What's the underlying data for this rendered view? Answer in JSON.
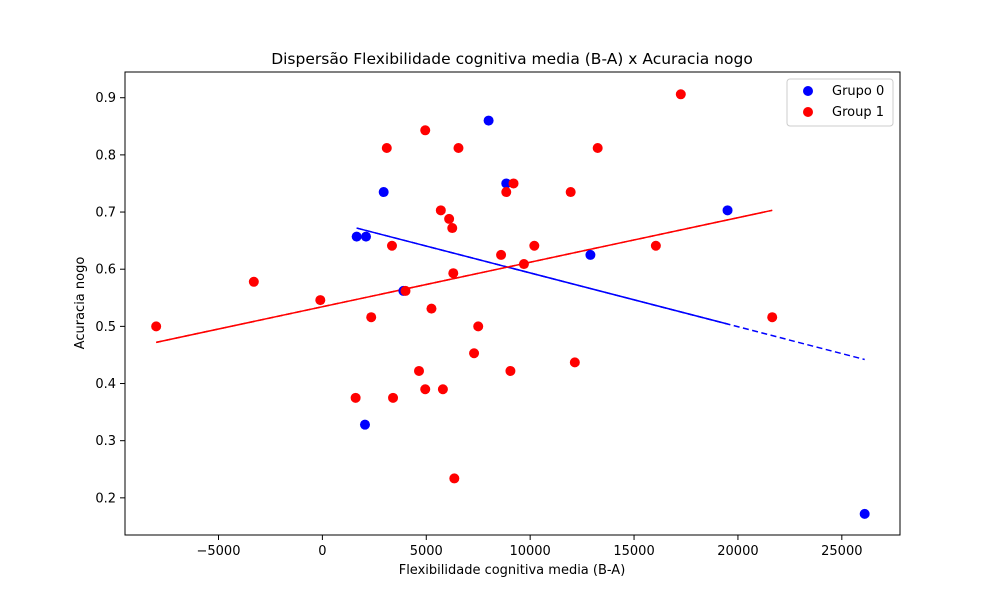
{
  "chart_data": {
    "type": "scatter",
    "title": "Dispersão Flexibilidade cognitiva media (B-A) x Acuracia nogo",
    "xlabel": "Flexibilidade cognitiva media (B-A)",
    "ylabel": "Acuracia nogo",
    "xlim": [
      -9500,
      27800
    ],
    "ylim": [
      0.135,
      0.945
    ],
    "xticks": [
      -5000,
      0,
      5000,
      10000,
      15000,
      20000,
      25000
    ],
    "xtick_labels": [
      "−5000",
      "0",
      "5000",
      "10000",
      "15000",
      "20000",
      "25000"
    ],
    "yticks": [
      0.2,
      0.3,
      0.4,
      0.5,
      0.6,
      0.7,
      0.8,
      0.9
    ],
    "ytick_labels": [
      "0.2",
      "0.3",
      "0.4",
      "0.5",
      "0.6",
      "0.7",
      "0.8",
      "0.9"
    ],
    "legend_position": "top-right",
    "series": [
      {
        "name": "Grupo 0",
        "color": "#0000ff",
        "points": [
          [
            1650,
            0.657
          ],
          [
            2100,
            0.657
          ],
          [
            2050,
            0.328
          ],
          [
            2950,
            0.735
          ],
          [
            3900,
            0.562
          ],
          [
            8000,
            0.86
          ],
          [
            8850,
            0.75
          ],
          [
            12900,
            0.625
          ],
          [
            19500,
            0.703
          ],
          [
            26100,
            0.172
          ]
        ],
        "trend": {
          "x_start": 1650,
          "x_end": 26100,
          "y_start": 0.672,
          "y_end": 0.442,
          "solid_until": 19500
        }
      },
      {
        "name": "Group 1",
        "color": "#ff0000",
        "points": [
          [
            -8000,
            0.5
          ],
          [
            -3300,
            0.578
          ],
          [
            -100,
            0.546
          ],
          [
            1600,
            0.375
          ],
          [
            2350,
            0.516
          ],
          [
            3100,
            0.812
          ],
          [
            3350,
            0.641
          ],
          [
            3400,
            0.375
          ],
          [
            4000,
            0.562
          ],
          [
            4650,
            0.422
          ],
          [
            4950,
            0.843
          ],
          [
            4950,
            0.39
          ],
          [
            5250,
            0.531
          ],
          [
            5700,
            0.703
          ],
          [
            5800,
            0.39
          ],
          [
            6100,
            0.688
          ],
          [
            6250,
            0.672
          ],
          [
            6300,
            0.593
          ],
          [
            6350,
            0.234
          ],
          [
            6550,
            0.812
          ],
          [
            7300,
            0.453
          ],
          [
            7500,
            0.5
          ],
          [
            8600,
            0.625
          ],
          [
            8850,
            0.735
          ],
          [
            9050,
            0.422
          ],
          [
            9200,
            0.75
          ],
          [
            9700,
            0.609
          ],
          [
            10200,
            0.641
          ],
          [
            11950,
            0.735
          ],
          [
            12150,
            0.437
          ],
          [
            13250,
            0.812
          ],
          [
            16050,
            0.641
          ],
          [
            17250,
            0.906
          ],
          [
            21650,
            0.516
          ]
        ],
        "trend": {
          "x_start": -8000,
          "x_end": 21650,
          "y_start": 0.472,
          "y_end": 0.703,
          "solid_until": 21650
        }
      }
    ]
  }
}
